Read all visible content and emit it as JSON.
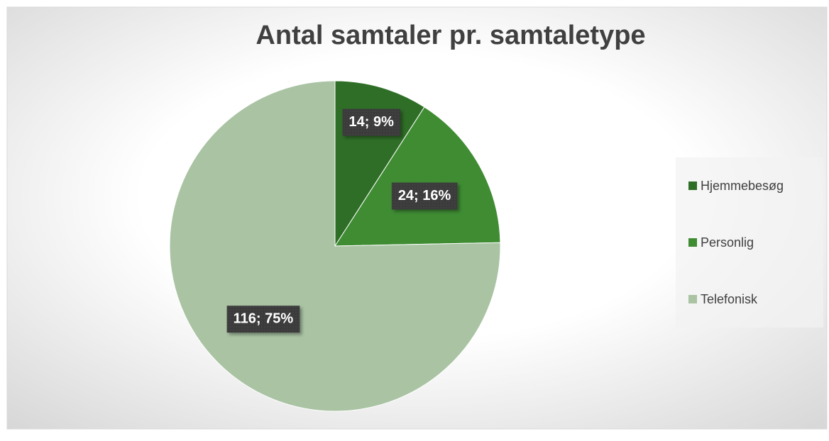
{
  "chart_data": {
    "type": "pie",
    "title": "Antal samtaler pr. samtaletype",
    "categories": [
      "Hjemmebesøg",
      "Personlig",
      "Telefonisk"
    ],
    "values": [
      14,
      24,
      116
    ],
    "value_labels": [
      "14; 9%",
      "24; 16%",
      "116; 75%"
    ],
    "colors": [
      "#2f6e27",
      "#3f8c33",
      "#a9c3a3"
    ],
    "legend": "right"
  }
}
